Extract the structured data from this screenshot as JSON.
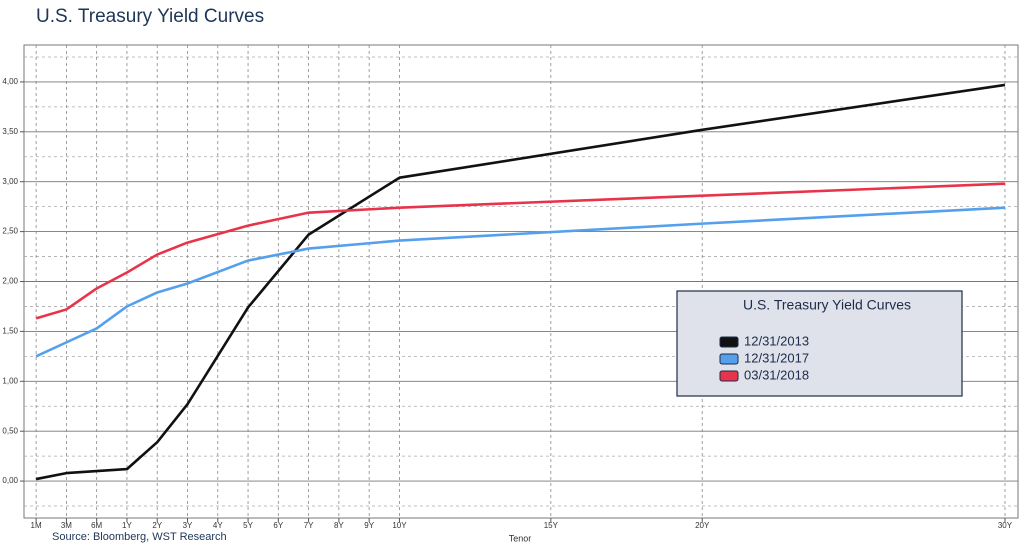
{
  "chart_data": {
    "type": "line",
    "title": "U.S. Treasury Yield Curves",
    "source": "Source: Bloomberg, WST Research",
    "x_label": "Tenor",
    "legend_title": "U.S. Treasury Yield Curves",
    "legend_position": "right",
    "grid": true,
    "x": [
      0.083,
      0.25,
      0.5,
      1,
      2,
      3,
      5,
      7,
      10,
      20,
      30
    ],
    "series": [
      {
        "name": "12/31/2013",
        "color": "#111111",
        "values": [
          0.02,
          0.08,
          0.1,
          0.12,
          0.39,
          0.77,
          1.74,
          2.47,
          3.04,
          3.52,
          3.97
        ]
      },
      {
        "name": "12/31/2017",
        "color": "#55a0ec",
        "values": [
          1.25,
          1.39,
          1.53,
          1.75,
          1.89,
          1.98,
          2.21,
          2.33,
          2.41,
          2.58,
          2.74
        ]
      },
      {
        "name": "03/31/2018",
        "color": "#e8344a",
        "values": [
          1.63,
          1.72,
          1.93,
          2.09,
          2.27,
          2.39,
          2.56,
          2.69,
          2.74,
          2.86,
          2.98
        ]
      }
    ],
    "xlim": [
      0,
      30.43
    ],
    "xticks": [
      {
        "value": 0.083,
        "label": "1M"
      },
      {
        "value": 0.25,
        "label": "3M"
      },
      {
        "value": 0.5,
        "label": "6M"
      },
      {
        "value": 1,
        "label": "1Y"
      },
      {
        "value": 2,
        "label": "2Y"
      },
      {
        "value": 3,
        "label": "3Y"
      },
      {
        "value": 4,
        "label": "4Y"
      },
      {
        "value": 5,
        "label": "5Y"
      },
      {
        "value": 6,
        "label": "6Y"
      },
      {
        "value": 7,
        "label": "7Y"
      },
      {
        "value": 8,
        "label": "8Y"
      },
      {
        "value": 9,
        "label": "9Y"
      },
      {
        "value": 10,
        "label": "10Y"
      },
      {
        "value": 15,
        "label": "15Y"
      },
      {
        "value": 20,
        "label": "20Y"
      },
      {
        "value": 30,
        "label": "30Y"
      }
    ],
    "ylim": [
      -0.37,
      4.37
    ],
    "yticks": [
      {
        "value": 0,
        "label": "0,00"
      },
      {
        "value": 0.5,
        "label": "0,50"
      },
      {
        "value": 1,
        "label": "1,00"
      },
      {
        "value": 1.5,
        "label": "1,50"
      },
      {
        "value": 2,
        "label": "2,00"
      },
      {
        "value": 2.5,
        "label": "2,50"
      },
      {
        "value": 3,
        "label": "3,00"
      },
      {
        "value": 3.5,
        "label": "3,50"
      },
      {
        "value": 4,
        "label": "4,00"
      }
    ],
    "y_minor_ticks": [
      -0.25,
      0.25,
      0.75,
      1.25,
      1.75,
      2.25,
      2.75,
      3.25,
      3.75,
      4.25
    ]
  }
}
